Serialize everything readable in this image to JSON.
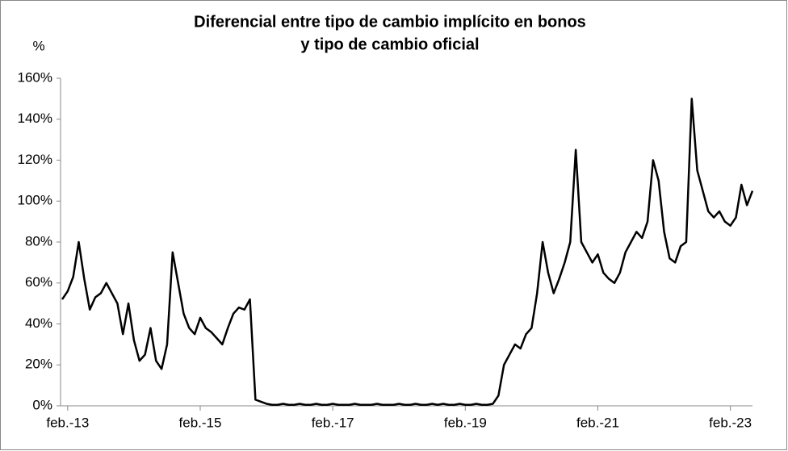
{
  "chart_data": {
    "type": "line",
    "title": "Diferencial entre tipo de cambio implícito en bonos",
    "subtitle": "y tipo de cambio oficial",
    "y_unit_label": "%",
    "x": [
      "2013-01",
      "2013-02",
      "2013-03",
      "2013-04",
      "2013-05",
      "2013-06",
      "2013-07",
      "2013-08",
      "2013-09",
      "2013-10",
      "2013-11",
      "2013-12",
      "2014-01",
      "2014-02",
      "2014-03",
      "2014-04",
      "2014-05",
      "2014-06",
      "2014-07",
      "2014-08",
      "2014-09",
      "2014-10",
      "2014-11",
      "2014-12",
      "2015-01",
      "2015-02",
      "2015-03",
      "2015-04",
      "2015-05",
      "2015-06",
      "2015-07",
      "2015-08",
      "2015-09",
      "2015-10",
      "2015-11",
      "2015-12",
      "2016-01",
      "2016-02",
      "2016-03",
      "2016-04",
      "2016-05",
      "2016-06",
      "2016-07",
      "2016-08",
      "2016-09",
      "2016-10",
      "2016-11",
      "2016-12",
      "2017-01",
      "2017-02",
      "2017-03",
      "2017-04",
      "2017-05",
      "2017-06",
      "2017-07",
      "2017-08",
      "2017-09",
      "2017-10",
      "2017-11",
      "2017-12",
      "2018-01",
      "2018-02",
      "2018-03",
      "2018-04",
      "2018-05",
      "2018-06",
      "2018-07",
      "2018-08",
      "2018-09",
      "2018-10",
      "2018-11",
      "2018-12",
      "2019-01",
      "2019-02",
      "2019-03",
      "2019-04",
      "2019-05",
      "2019-06",
      "2019-07",
      "2019-08",
      "2019-09",
      "2019-10",
      "2019-11",
      "2019-12",
      "2020-01",
      "2020-02",
      "2020-03",
      "2020-04",
      "2020-05",
      "2020-06",
      "2020-07",
      "2020-08",
      "2020-09",
      "2020-10",
      "2020-11",
      "2020-12",
      "2021-01",
      "2021-02",
      "2021-03",
      "2021-04",
      "2021-05",
      "2021-06",
      "2021-07",
      "2021-08",
      "2021-09",
      "2021-10",
      "2021-11",
      "2021-12",
      "2022-01",
      "2022-02",
      "2022-03",
      "2022-04",
      "2022-05",
      "2022-06",
      "2022-07",
      "2022-08",
      "2022-09",
      "2022-10",
      "2022-11",
      "2022-12",
      "2023-01",
      "2023-02",
      "2023-03",
      "2023-04",
      "2023-05",
      "2023-06"
    ],
    "series": [
      {
        "name": "Diferencial",
        "color": "#000000",
        "values": [
          52,
          56,
          63,
          80,
          62,
          47,
          53,
          55,
          60,
          55,
          50,
          35,
          50,
          32,
          22,
          25,
          38,
          22,
          18,
          30,
          75,
          60,
          45,
          38,
          35,
          43,
          38,
          36,
          33,
          30,
          38,
          45,
          48,
          47,
          52,
          3,
          2,
          1,
          0.5,
          0.5,
          1,
          0.5,
          0.5,
          1,
          0.5,
          0.5,
          1,
          0.5,
          0.5,
          1,
          0.5,
          0.5,
          0.5,
          1,
          0.5,
          0.5,
          0.5,
          1,
          0.5,
          0.5,
          0.5,
          1,
          0.5,
          0.5,
          1,
          0.5,
          0.5,
          1,
          0.5,
          1,
          0.5,
          0.5,
          1,
          0.5,
          0.5,
          1,
          0.5,
          0.5,
          1,
          5,
          20,
          25,
          30,
          28,
          35,
          38,
          55,
          80,
          65,
          55,
          62,
          70,
          80,
          125,
          80,
          75,
          70,
          74,
          65,
          62,
          60,
          65,
          75,
          80,
          85,
          82,
          90,
          120,
          110,
          85,
          72,
          70,
          78,
          80,
          150,
          115,
          105,
          95,
          92,
          95,
          90,
          88,
          92,
          108,
          98,
          105
        ]
      }
    ],
    "xlim": [
      "2013-01",
      "2023-06"
    ],
    "xticks": [
      {
        "value": "2013-02",
        "label": "feb.-13"
      },
      {
        "value": "2015-02",
        "label": "feb.-15"
      },
      {
        "value": "2017-02",
        "label": "feb.-17"
      },
      {
        "value": "2019-02",
        "label": "feb.-19"
      },
      {
        "value": "2021-02",
        "label": "feb.-21"
      },
      {
        "value": "2023-02",
        "label": "feb.-23"
      }
    ],
    "ylim": [
      0,
      160
    ],
    "yticks": [
      {
        "value": 0,
        "label": "0%"
      },
      {
        "value": 20,
        "label": "20%"
      },
      {
        "value": 40,
        "label": "40%"
      },
      {
        "value": 60,
        "label": "60%"
      },
      {
        "value": 80,
        "label": "80%"
      },
      {
        "value": 100,
        "label": "100%"
      },
      {
        "value": 120,
        "label": "120%"
      },
      {
        "value": 140,
        "label": "140%"
      },
      {
        "value": 160,
        "label": "160%"
      }
    ],
    "grid": false
  }
}
